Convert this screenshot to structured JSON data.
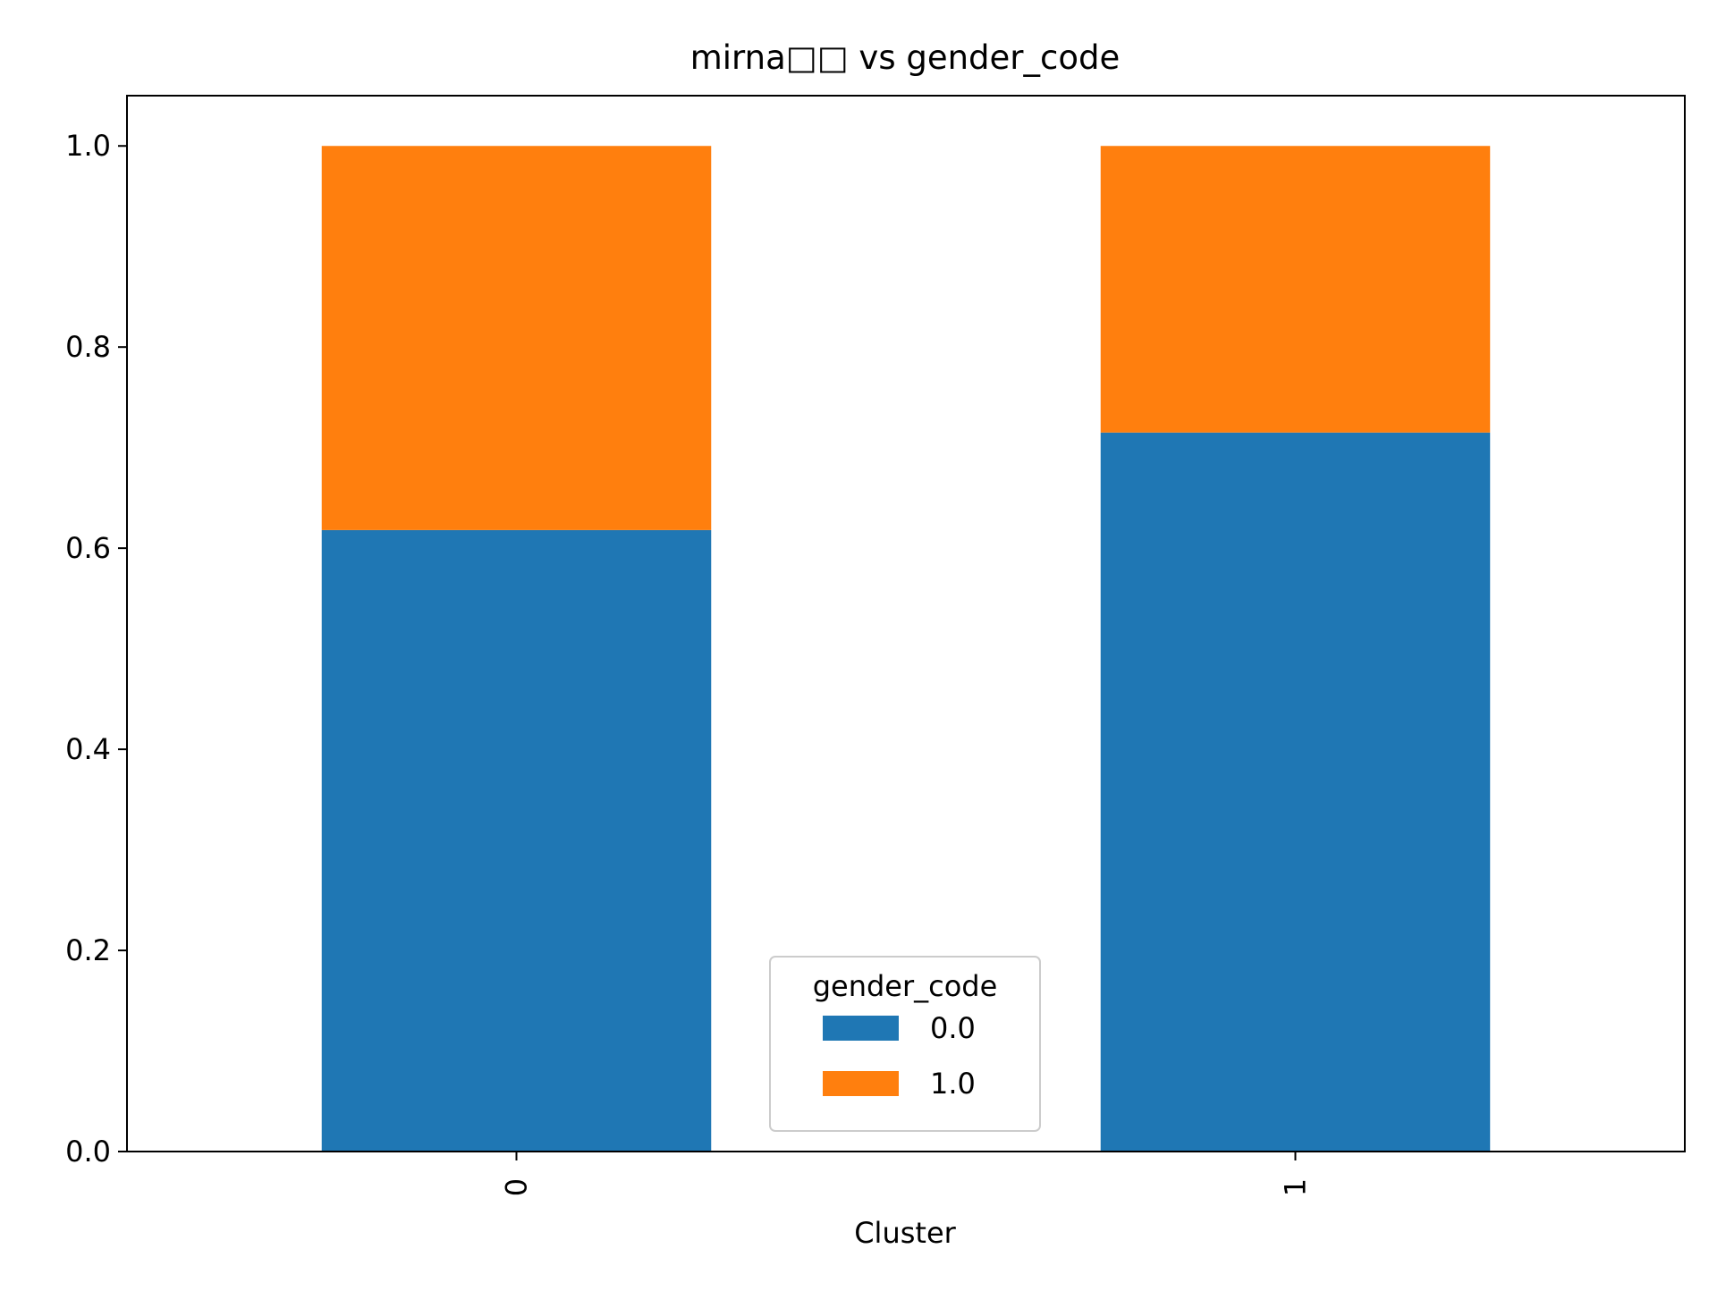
{
  "chart_data": {
    "type": "bar",
    "stacked": true,
    "title": "mirna□□ vs gender_code",
    "xlabel": "Cluster",
    "ylabel": "",
    "categories": [
      "0",
      "1"
    ],
    "ylim": [
      0,
      1.05
    ],
    "yticks": [
      0.0,
      0.2,
      0.4,
      0.6,
      0.8,
      1.0
    ],
    "ytick_labels": [
      "0.0",
      "0.2",
      "0.4",
      "0.6",
      "0.8",
      "1.0"
    ],
    "grid": false,
    "series": [
      {
        "name": "0.0",
        "color": "#1f77b4",
        "values": [
          0.618,
          0.715
        ]
      },
      {
        "name": "1.0",
        "color": "#ff7f0e",
        "values": [
          0.382,
          0.285
        ]
      }
    ],
    "legend": {
      "title": "gender_code",
      "placement": "lower-center"
    }
  }
}
